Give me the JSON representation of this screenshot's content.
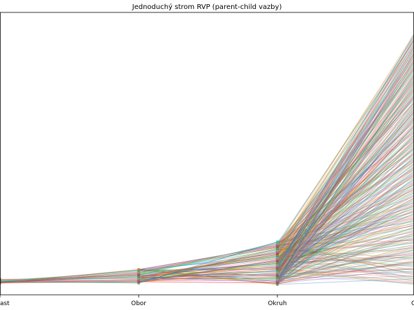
{
  "chart_data": {
    "type": "line",
    "title": "Jednoduchý strom RVP (parent-child vazby)",
    "xlabel": "",
    "ylabel": "",
    "categories": [
      "Oblast",
      "Obor",
      "Okruh",
      "Cíl"
    ],
    "visible_tick_labels": [
      "ast",
      "Obor",
      "Okruh",
      "C"
    ],
    "level_node_counts": [
      8,
      22,
      60,
      350
    ],
    "edges_per_level": [
      8,
      22,
      60,
      350
    ],
    "ylim": [
      0,
      350
    ],
    "grid": false,
    "legend": "none",
    "edge_alpha": 0.35,
    "palette": [
      "#1f77b4",
      "#ff7f0e",
      "#2ca02c",
      "#d62728",
      "#9467bd",
      "#8c564b",
      "#e377c2",
      "#7f7f7f",
      "#bcbd22",
      "#17becf"
    ]
  }
}
